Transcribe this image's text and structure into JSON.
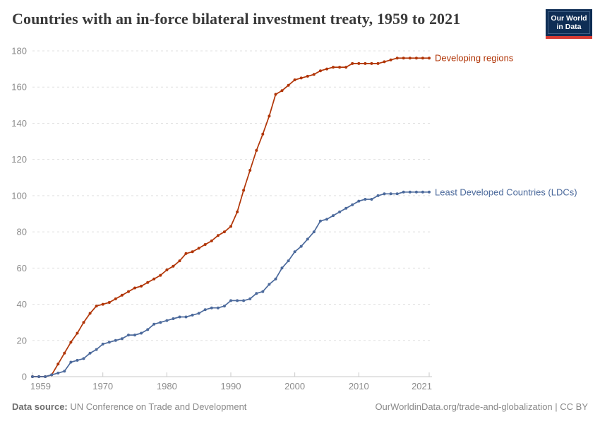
{
  "header": {
    "title": "Countries with an in-force bilateral investment treaty, 1959 to 2021",
    "logo": {
      "line1": "Our World",
      "line2": "in Data"
    }
  },
  "chart_data": {
    "type": "line",
    "title": "Countries with an in-force bilateral investment treaty, 1959 to 2021",
    "xlabel": "",
    "ylabel": "",
    "xlim": [
      1959,
      2021
    ],
    "ylim": [
      0,
      180
    ],
    "xticks": [
      1959,
      1970,
      1980,
      1990,
      2000,
      2010,
      2021
    ],
    "yticks": [
      0,
      20,
      40,
      60,
      80,
      100,
      120,
      140,
      160,
      180
    ],
    "grid": true,
    "legend_position": "end-of-line",
    "x": [
      1959,
      1960,
      1961,
      1962,
      1963,
      1964,
      1965,
      1966,
      1967,
      1968,
      1969,
      1970,
      1971,
      1972,
      1973,
      1974,
      1975,
      1976,
      1977,
      1978,
      1979,
      1980,
      1981,
      1982,
      1983,
      1984,
      1985,
      1986,
      1987,
      1988,
      1989,
      1990,
      1991,
      1992,
      1993,
      1994,
      1995,
      1996,
      1997,
      1998,
      1999,
      2000,
      2001,
      2002,
      2003,
      2004,
      2005,
      2006,
      2007,
      2008,
      2009,
      2010,
      2011,
      2012,
      2013,
      2014,
      2015,
      2016,
      2017,
      2018,
      2019,
      2020,
      2021
    ],
    "series": [
      {
        "name": "Developing regions",
        "color": "#B13507",
        "values": [
          0,
          0,
          0,
          1,
          7,
          13,
          19,
          24,
          30,
          35,
          39,
          40,
          41,
          43,
          45,
          47,
          49,
          50,
          52,
          54,
          56,
          59,
          61,
          64,
          68,
          69,
          71,
          73,
          75,
          78,
          80,
          83,
          91,
          103,
          114,
          125,
          134,
          144,
          156,
          158,
          161,
          164,
          165,
          166,
          167,
          169,
          170,
          171,
          171,
          171,
          173,
          173,
          173,
          173,
          173,
          174,
          175,
          176,
          176,
          176,
          176,
          176,
          176
        ]
      },
      {
        "name": "Least Developed Countries (LDCs)",
        "color": "#4C6A9C",
        "values": [
          0,
          0,
          0,
          1,
          2,
          3,
          8,
          9,
          10,
          13,
          15,
          18,
          19,
          20,
          21,
          23,
          23,
          24,
          26,
          29,
          30,
          31,
          32,
          33,
          33,
          34,
          35,
          37,
          38,
          38,
          39,
          42,
          42,
          42,
          43,
          46,
          47,
          51,
          54,
          60,
          64,
          69,
          72,
          76,
          80,
          86,
          87,
          89,
          91,
          93,
          95,
          97,
          98,
          98,
          100,
          101,
          101,
          101,
          102,
          102,
          102,
          102,
          102
        ]
      }
    ]
  },
  "footer": {
    "data_source_label": "Data source:",
    "data_source_value": "UN Conference on Trade and Development",
    "attribution": "OurWorldinData.org/trade-and-globalization | CC BY"
  },
  "colors": {
    "series_developing": "#B13507",
    "series_ldcs": "#4C6A9C",
    "gridline": "#e0e0e0",
    "axis": "#c8c8c8",
    "tick_text": "#8c8c8c",
    "logo_bg": "#0f2e55",
    "logo_stripe": "#d73c34"
  }
}
